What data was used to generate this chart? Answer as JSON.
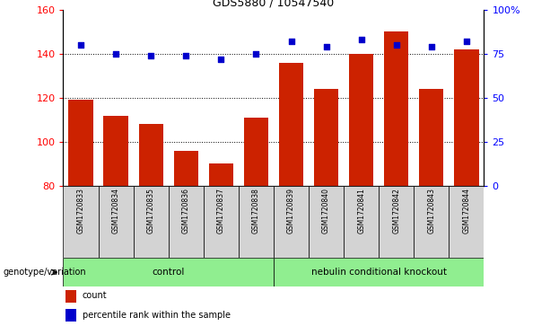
{
  "title": "GDS5880 / 10547540",
  "samples": [
    "GSM1720833",
    "GSM1720834",
    "GSM1720835",
    "GSM1720836",
    "GSM1720837",
    "GSM1720838",
    "GSM1720839",
    "GSM1720840",
    "GSM1720841",
    "GSM1720842",
    "GSM1720843",
    "GSM1720844"
  ],
  "counts": [
    119,
    112,
    108,
    96,
    90,
    111,
    136,
    124,
    140,
    150,
    124,
    142
  ],
  "percentiles": [
    80,
    75,
    74,
    74,
    72,
    75,
    82,
    79,
    83,
    80,
    79,
    82
  ],
  "group_labels": [
    "control",
    "nebulin conditional knockout"
  ],
  "group_colors": [
    "#90ee90",
    "#90ee90"
  ],
  "group_ranges": [
    [
      0,
      5
    ],
    [
      6,
      11
    ]
  ],
  "bar_color": "#cc2200",
  "scatter_color": "#0000cc",
  "ylim_left": [
    80,
    160
  ],
  "ylim_right": [
    0,
    100
  ],
  "yticks_left": [
    80,
    100,
    120,
    140,
    160
  ],
  "yticks_right": [
    0,
    25,
    50,
    75,
    100
  ],
  "ytick_labels_right": [
    "0",
    "25",
    "50",
    "75",
    "100%"
  ],
  "grid_values": [
    100,
    120,
    140
  ],
  "xlabel_area_label": "genotype/variation",
  "legend_items": [
    "count",
    "percentile rank within the sample"
  ],
  "legend_colors": [
    "#cc2200",
    "#0000cc"
  ],
  "sample_bg_color": "#d3d3d3"
}
